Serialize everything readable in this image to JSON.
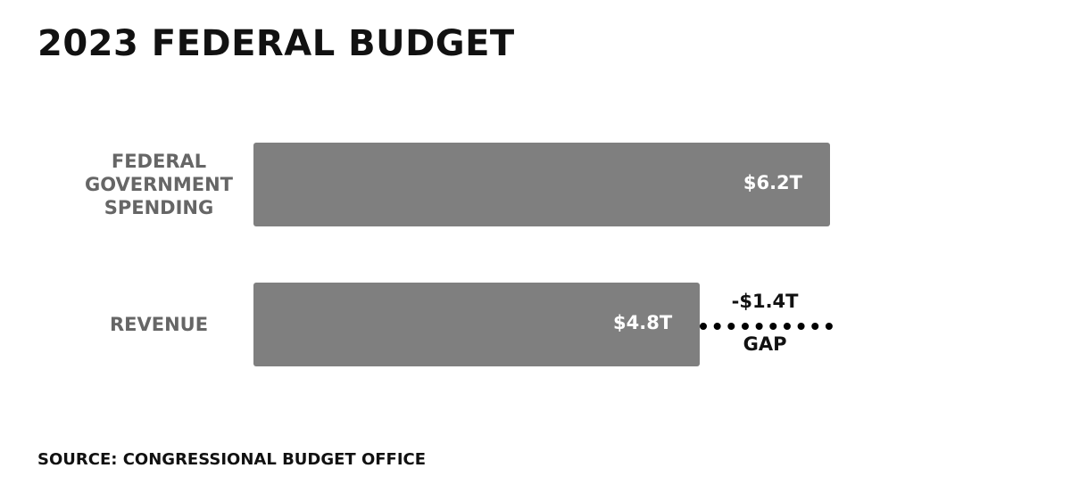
{
  "chart_data": {
    "type": "bar",
    "orientation": "horizontal",
    "title": "2023 FEDERAL BUDGET",
    "categories": [
      [
        "FEDERAL",
        "GOVERNMENT",
        "SPENDING"
      ],
      [
        "REVENUE"
      ]
    ],
    "values": [
      6.2,
      4.8
    ],
    "value_labels": [
      "$6.2T",
      "$4.8T"
    ],
    "xlim": [
      0,
      6.2
    ],
    "grid": false,
    "gap": {
      "value": -1.4,
      "value_label": "-$1.4T",
      "label": "GAP"
    },
    "source": "SOURCE: CONGRESSIONAL BUDGET OFFICE",
    "colors": {
      "bar": "#7f7f7f",
      "bar_text": "#ffffff",
      "category_text": "#666666",
      "gap_line": "#000000"
    }
  }
}
